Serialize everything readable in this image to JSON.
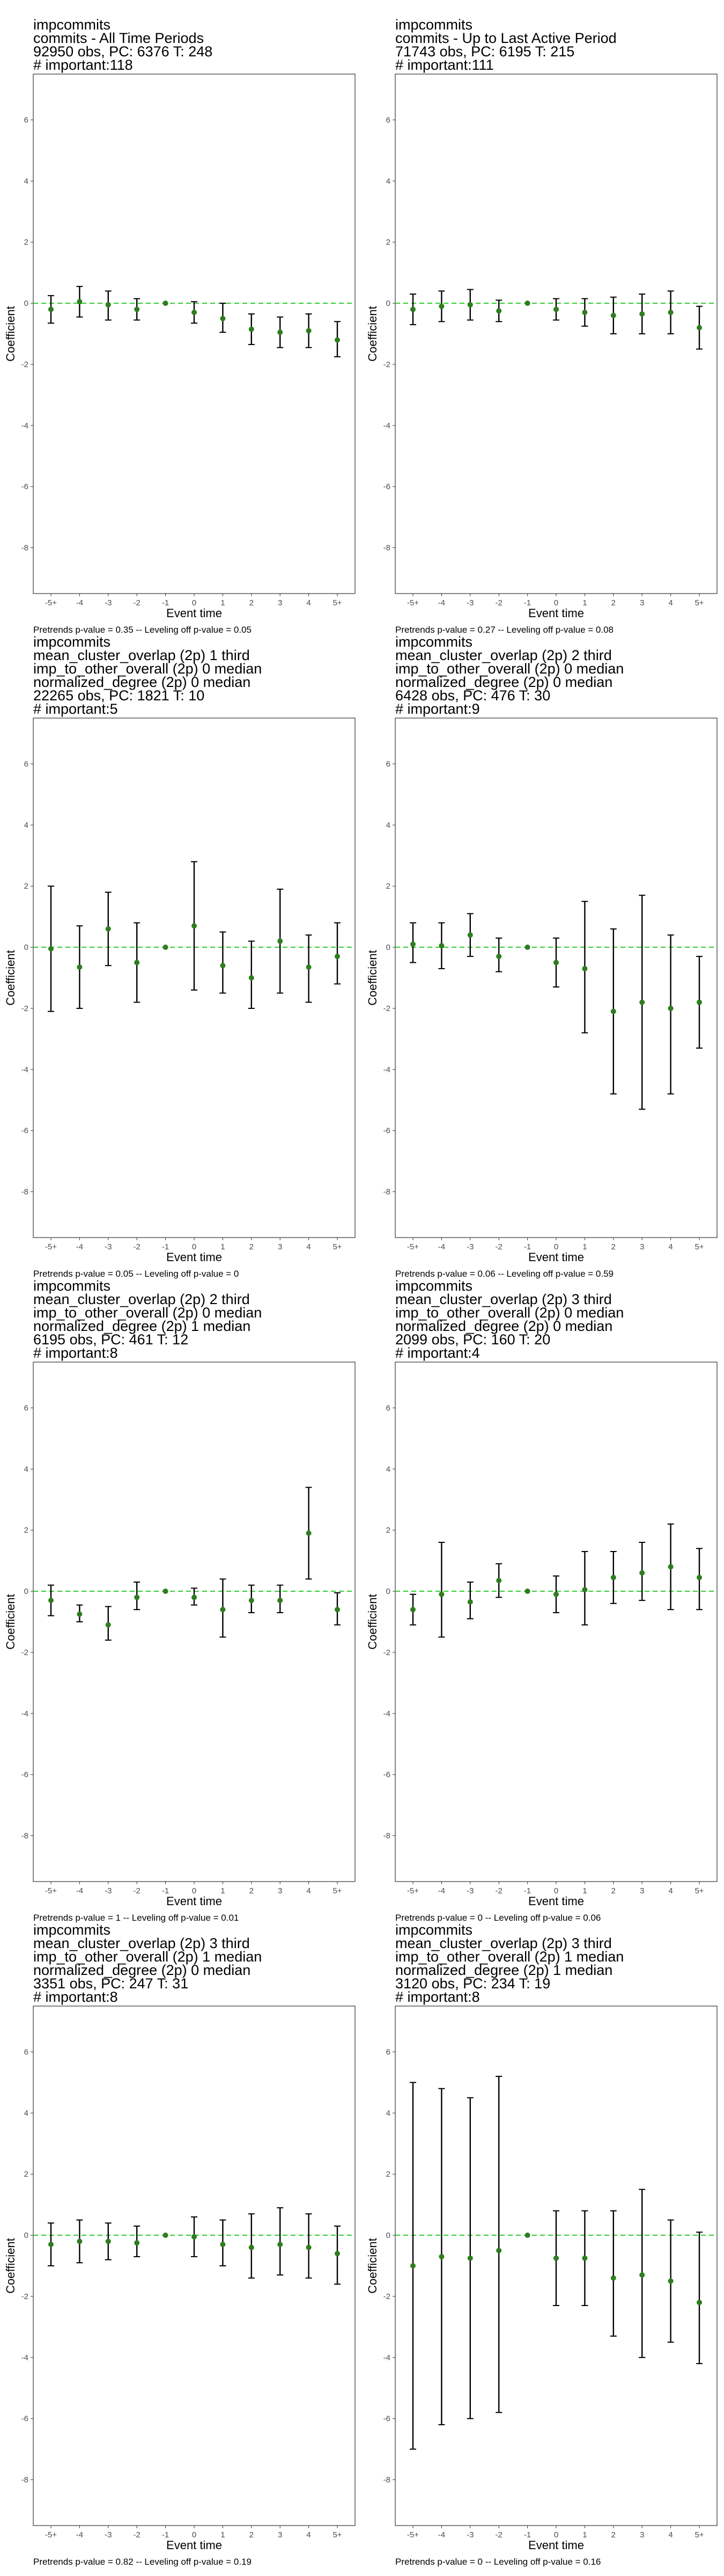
{
  "common": {
    "ylabel": "Coefficient",
    "xlabel": "Event time",
    "x_ticks": [
      "-5+",
      "-4",
      "-3",
      "-2",
      "-1",
      "0",
      "1",
      "2",
      "3",
      "4",
      "5+"
    ],
    "y_ticks": [
      -8,
      -6,
      -4,
      -2,
      0,
      2,
      4,
      6
    ],
    "ylim": [
      -9.5,
      7.5
    ],
    "colors": {
      "estimate": "#2e7d1e",
      "zero_line": "#33cc33",
      "interval": "#000000"
    }
  },
  "panels": [
    {
      "title_lines": [
        " impcommits",
        "commits - All Time Periods",
        "92950 obs, PC: 6376 T: 248",
        "# important:118"
      ],
      "caption": "Pretrends p-value = 0.35 -- Leveling off p-value = 0.05"
    },
    {
      "title_lines": [
        " impcommits",
        "commits - Up to Last Active Period",
        "71743 obs, PC: 6195 T: 215",
        "# important:111"
      ],
      "caption": "Pretrends p-value = 0.27 -- Leveling off p-value = 0.08"
    },
    {
      "title_lines": [
        " impcommits",
        "mean_cluster_overlap (2p) 1 third",
        "imp_to_other_overall (2p) 0 median",
        "normalized_degree (2p) 0 median",
        "22265 obs, PC: 1821 T: 10",
        "# important:5"
      ],
      "caption": "Pretrends p-value = 0.05 -- Leveling off p-value = 0"
    },
    {
      "title_lines": [
        " impcommits",
        "mean_cluster_overlap (2p) 2 third",
        "imp_to_other_overall (2p) 0 median",
        "normalized_degree (2p) 0 median",
        "6428 obs, PC: 476 T: 30",
        "# important:9"
      ],
      "caption": "Pretrends p-value = 0.06 -- Leveling off p-value = 0.59"
    },
    {
      "title_lines": [
        " impcommits",
        "mean_cluster_overlap (2p) 2 third",
        "imp_to_other_overall (2p) 0 median",
        "normalized_degree (2p) 1 median",
        "6195 obs, PC: 461 T: 12",
        "# important:8"
      ],
      "caption": "Pretrends p-value = 1 -- Leveling off p-value = 0.01"
    },
    {
      "title_lines": [
        " impcommits",
        "mean_cluster_overlap (2p) 3 third",
        "imp_to_other_overall (2p) 0 median",
        "normalized_degree (2p) 0 median",
        "2099 obs, PC: 160 T: 20",
        "# important:4"
      ],
      "caption": "Pretrends p-value = 0 -- Leveling off p-value = 0.06"
    },
    {
      "title_lines": [
        " impcommits",
        "mean_cluster_overlap (2p) 3 third",
        "imp_to_other_overall (2p) 1 median",
        "normalized_degree (2p) 0 median",
        "3351 obs, PC: 247 T: 31",
        "# important:8"
      ],
      "caption": "Pretrends p-value = 0.82 -- Leveling off p-value = 0.19"
    },
    {
      "title_lines": [
        " impcommits",
        "mean_cluster_overlap (2p) 3 third",
        "imp_to_other_overall (2p) 1 median",
        "normalized_degree (2p) 1 median",
        "3120 obs, PC: 234 T: 19",
        "# important:8"
      ],
      "caption": "Pretrends p-value = 0 -- Leveling off p-value = 0.16"
    }
  ],
  "chart_data": [
    {
      "type": "scatter",
      "x": [
        "-5+",
        "-4",
        "-3",
        "-2",
        "-1",
        "0",
        "1",
        "2",
        "3",
        "4",
        "5+"
      ],
      "series": [
        {
          "estimate": [
            -0.2,
            0.05,
            -0.05,
            -0.2,
            0,
            -0.3,
            -0.5,
            -0.85,
            -0.95,
            -0.9,
            -1.2
          ],
          "ci95_low": [
            -0.65,
            -0.45,
            -0.55,
            -0.55,
            0,
            -0.65,
            -0.95,
            -1.35,
            -1.45,
            -1.45,
            -1.75
          ],
          "ci95_high": [
            0.25,
            0.55,
            0.4,
            0.15,
            0,
            0.05,
            0.0,
            -0.35,
            -0.45,
            -0.35,
            -0.6
          ]
        }
      ],
      "ylim": [
        -9.5,
        7.5
      ]
    },
    {
      "type": "scatter",
      "x": [
        "-5+",
        "-4",
        "-3",
        "-2",
        "-1",
        "0",
        "1",
        "2",
        "3",
        "4",
        "5+"
      ],
      "series": [
        {
          "estimate": [
            -0.2,
            -0.1,
            -0.05,
            -0.25,
            0,
            -0.2,
            -0.3,
            -0.4,
            -0.35,
            -0.3,
            -0.8
          ],
          "ci95_low": [
            -0.7,
            -0.6,
            -0.55,
            -0.6,
            0,
            -0.55,
            -0.75,
            -1.0,
            -1.0,
            -1.0,
            -1.5
          ],
          "ci95_high": [
            0.3,
            0.4,
            0.45,
            0.1,
            0,
            0.15,
            0.15,
            0.2,
            0.3,
            0.4,
            -0.1
          ]
        }
      ],
      "ylim": [
        -9.5,
        7.5
      ]
    },
    {
      "type": "scatter",
      "x": [
        "-5+",
        "-4",
        "-3",
        "-2",
        "-1",
        "0",
        "1",
        "2",
        "3",
        "4",
        "5+"
      ],
      "series": [
        {
          "estimate": [
            -0.05,
            -0.65,
            0.6,
            -0.5,
            0,
            0.7,
            -0.6,
            -1.0,
            0.2,
            -0.65,
            -0.3
          ],
          "ci95_low": [
            -2.1,
            -2.0,
            -0.6,
            -1.8,
            0,
            -1.4,
            -1.5,
            -2.0,
            -1.5,
            -1.8,
            -1.2
          ],
          "ci95_high": [
            2.0,
            0.7,
            1.8,
            0.8,
            0,
            2.8,
            0.5,
            0.2,
            1.9,
            0.4,
            0.8
          ]
        }
      ],
      "ylim": [
        -9.5,
        7.5
      ]
    },
    {
      "type": "scatter",
      "x": [
        "-5+",
        "-4",
        "-3",
        "-2",
        "-1",
        "0",
        "1",
        "2",
        "3",
        "4",
        "5+"
      ],
      "series": [
        {
          "estimate": [
            0.1,
            0.05,
            0.4,
            -0.3,
            0,
            -0.5,
            -0.7,
            -2.1,
            -1.8,
            -2.0,
            -1.8
          ],
          "ci95_low": [
            -0.5,
            -0.7,
            -0.3,
            -0.8,
            0,
            -1.3,
            -2.8,
            -4.8,
            -5.3,
            -4.8,
            -3.3
          ],
          "ci95_high": [
            0.8,
            0.8,
            1.1,
            0.3,
            0,
            0.3,
            1.5,
            0.6,
            1.7,
            0.4,
            -0.3
          ]
        }
      ],
      "ylim": [
        -9.5,
        7.5
      ]
    },
    {
      "type": "scatter",
      "x": [
        "-5+",
        "-4",
        "-3",
        "-2",
        "-1",
        "0",
        "1",
        "2",
        "3",
        "4",
        "5+"
      ],
      "series": [
        {
          "estimate": [
            -0.3,
            -0.75,
            -1.1,
            -0.2,
            0,
            -0.2,
            -0.6,
            -0.3,
            -0.3,
            1.9,
            -0.6
          ],
          "ci95_low": [
            -0.8,
            -1.0,
            -1.6,
            -0.6,
            0,
            -0.45,
            -1.5,
            -0.7,
            -0.7,
            0.4,
            -1.1
          ],
          "ci95_high": [
            0.2,
            -0.45,
            -0.5,
            0.3,
            0,
            0.1,
            0.4,
            0.2,
            0.2,
            3.4,
            -0.05
          ]
        }
      ],
      "ylim": [
        -9.5,
        7.5
      ]
    },
    {
      "type": "scatter",
      "x": [
        "-5+",
        "-4",
        "-3",
        "-2",
        "-1",
        "0",
        "1",
        "2",
        "3",
        "4",
        "5+"
      ],
      "series": [
        {
          "estimate": [
            -0.6,
            -0.1,
            -0.35,
            0.35,
            0,
            -0.1,
            0.05,
            0.45,
            0.6,
            0.8,
            0.45
          ],
          "ci95_low": [
            -1.1,
            -1.5,
            -0.9,
            -0.2,
            0,
            -0.7,
            -1.1,
            -0.4,
            -0.3,
            -0.6,
            -0.6
          ],
          "ci95_high": [
            -0.1,
            1.6,
            0.3,
            0.9,
            0,
            0.5,
            1.3,
            1.3,
            1.6,
            2.2,
            1.4
          ]
        }
      ],
      "ylim": [
        -9.5,
        7.5
      ]
    },
    {
      "type": "scatter",
      "x": [
        "-5+",
        "-4",
        "-3",
        "-2",
        "-1",
        "0",
        "1",
        "2",
        "3",
        "4",
        "5+"
      ],
      "series": [
        {
          "estimate": [
            -0.3,
            -0.2,
            -0.2,
            -0.25,
            0,
            -0.05,
            -0.3,
            -0.4,
            -0.3,
            -0.4,
            -0.6
          ],
          "ci95_low": [
            -1.0,
            -0.9,
            -0.8,
            -0.7,
            0,
            -0.7,
            -1.0,
            -1.4,
            -1.3,
            -1.4,
            -1.6
          ],
          "ci95_high": [
            0.4,
            0.5,
            0.4,
            0.3,
            0,
            0.6,
            0.5,
            0.7,
            0.9,
            0.7,
            0.3
          ]
        }
      ],
      "ylim": [
        -9.5,
        7.5
      ]
    },
    {
      "type": "scatter",
      "x": [
        "-5+",
        "-4",
        "-3",
        "-2",
        "-1",
        "0",
        "1",
        "2",
        "3",
        "4",
        "5+"
      ],
      "series": [
        {
          "estimate": [
            -1.0,
            -0.7,
            -0.75,
            -0.5,
            0,
            -0.75,
            -0.75,
            -1.4,
            -1.3,
            -1.5,
            -2.2
          ],
          "ci95_low": [
            -7.0,
            -6.2,
            -6.0,
            -5.8,
            0,
            -2.3,
            -2.3,
            -3.3,
            -4.0,
            -3.5,
            -4.2
          ],
          "ci95_high": [
            5.0,
            4.8,
            4.5,
            5.2,
            0,
            0.8,
            0.8,
            0.8,
            1.5,
            0.5,
            0.1
          ]
        }
      ],
      "ylim": [
        -9.5,
        7.5
      ]
    }
  ]
}
